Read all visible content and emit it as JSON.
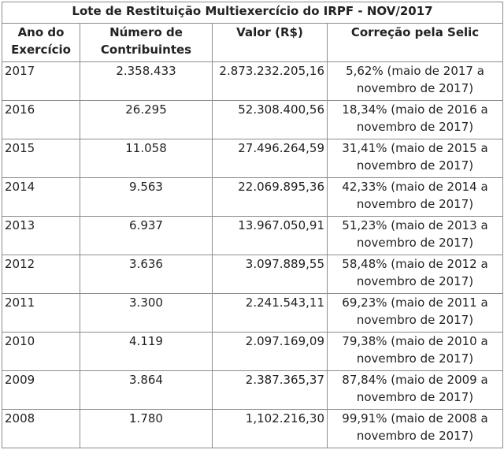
{
  "table": {
    "title": "Lote de Restituição Multiexercício do IRPF - NOV/2017",
    "headers": {
      "year": "Ano do Exercício",
      "contributors": "Número de Contribuintes",
      "value": "Valor (R$)",
      "selic": "Correção pela Selic"
    },
    "rows": [
      {
        "year": "2017",
        "contributors": "2.358.433",
        "value": "2.873.232.205,16",
        "selic": "5,62% (maio de 2017 a novembro de 2017)"
      },
      {
        "year": "2016",
        "contributors": "26.295",
        "value": "52.308.400,56",
        "selic": "18,34% (maio de 2016 a novembro de 2017)"
      },
      {
        "year": "2015",
        "contributors": "11.058",
        "value": "27.496.264,59",
        "selic": "31,41% (maio de 2015 a novembro de 2017)"
      },
      {
        "year": "2014",
        "contributors": "9.563",
        "value": "22.069.895,36",
        "selic": "42,33% (maio de 2014 a novembro de 2017)"
      },
      {
        "year": "2013",
        "contributors": "6.937",
        "value": "13.967.050,91",
        "selic": "51,23% (maio de 2013 a novembro de 2017)"
      },
      {
        "year": "2012",
        "contributors": "3.636",
        "value": "3.097.889,55",
        "selic": "58,48% (maio de 2012 a novembro de 2017)"
      },
      {
        "year": "2011",
        "contributors": "3.300",
        "value": "2.241.543,11",
        "selic": "69,23% (maio de 2011 a novembro de 2017)"
      },
      {
        "year": "2010",
        "contributors": "4.119",
        "value": "2.097.169,09",
        "selic": "79,38% (maio de 2010 a novembro de 2017)"
      },
      {
        "year": "2009",
        "contributors": "3.864",
        "value": "2.387.365,37",
        "selic": "87,84% (maio de 2009 a novembro de 2017)"
      },
      {
        "year": "2008",
        "contributors": "1.780",
        "value": "1,102.216,30",
        "selic": "99,91% (maio de 2008 a novembro de 2017)"
      }
    ]
  }
}
